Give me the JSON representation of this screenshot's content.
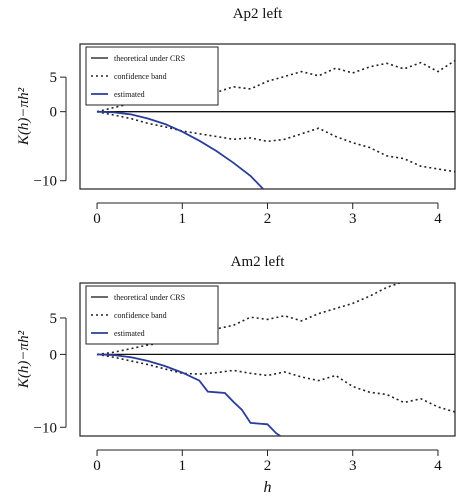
{
  "chart_data": [
    {
      "type": "line",
      "title": "Ap2 left",
      "ylabel": "K(h)−πh²",
      "xlabel": "",
      "xlim": [
        -0.2,
        4.2
      ],
      "ylim": [
        -11.2,
        9.8
      ],
      "xticks": [
        0,
        1,
        2,
        3,
        4
      ],
      "yticks": [
        -10,
        0,
        5
      ],
      "legend_position": "top-left",
      "legend": [
        "theoretical under CRS",
        "confidence band",
        "estimated"
      ],
      "series": [
        {
          "name": "theoretical under CRS",
          "style": "solid",
          "color": "#111111",
          "x": [
            0,
            4.2
          ],
          "y": [
            0,
            0
          ]
        },
        {
          "name": "confidence band",
          "style": "dotted",
          "color": "#222222",
          "x": [
            0,
            0.2,
            0.4,
            0.6,
            0.8,
            1.0,
            1.2,
            1.4,
            1.6,
            1.8,
            2.0,
            2.2,
            2.4,
            2.6,
            2.8,
            3.0,
            3.2,
            3.4,
            3.6,
            3.8,
            4.0,
            4.2
          ],
          "y": [
            0,
            0.6,
            1.2,
            1.8,
            2.4,
            2.9,
            3.1,
            2.8,
            3.6,
            3.3,
            4.4,
            5.1,
            5.8,
            5.2,
            6.3,
            5.6,
            6.5,
            7.0,
            6.2,
            7.1,
            5.8,
            7.4
          ]
        },
        {
          "name": "confidence band",
          "style": "dotted",
          "color": "#222222",
          "x": [
            0,
            0.2,
            0.4,
            0.6,
            0.8,
            1.0,
            1.2,
            1.4,
            1.6,
            1.8,
            2.0,
            2.2,
            2.4,
            2.6,
            2.8,
            3.0,
            3.2,
            3.4,
            3.6,
            3.8,
            4.0,
            4.2
          ],
          "y": [
            0,
            -0.5,
            -1.0,
            -1.7,
            -2.2,
            -2.8,
            -3.2,
            -3.6,
            -4.0,
            -3.8,
            -4.3,
            -4.0,
            -3.2,
            -2.4,
            -3.6,
            -4.5,
            -5.2,
            -6.4,
            -6.8,
            -7.9,
            -8.3,
            -8.7
          ]
        },
        {
          "name": "estimated",
          "style": "solid",
          "color": "#2b3d9c",
          "x": [
            0,
            0.2,
            0.4,
            0.6,
            0.8,
            1.0,
            1.2,
            1.4,
            1.6,
            1.8,
            1.95
          ],
          "y": [
            0,
            -0.1,
            -0.4,
            -1.0,
            -1.8,
            -2.9,
            -4.2,
            -5.7,
            -7.4,
            -9.3,
            -11.2
          ]
        }
      ]
    },
    {
      "type": "line",
      "title": "Am2 left",
      "ylabel": "K(h)−πh²",
      "xlabel": "h",
      "xlim": [
        -0.2,
        4.2
      ],
      "ylim": [
        -11.2,
        9.8
      ],
      "xticks": [
        0,
        1,
        2,
        3,
        4
      ],
      "yticks": [
        -10,
        0,
        5
      ],
      "legend_position": "top-left",
      "legend": [
        "theoretical under CRS",
        "confidence band",
        "estimated"
      ],
      "series": [
        {
          "name": "theoretical under CRS",
          "style": "solid",
          "color": "#111111",
          "x": [
            0,
            4.2
          ],
          "y": [
            0,
            0
          ]
        },
        {
          "name": "confidence band",
          "style": "dotted",
          "color": "#222222",
          "x": [
            0,
            0.2,
            0.4,
            0.6,
            0.8,
            1.0,
            1.2,
            1.4,
            1.6,
            1.8,
            2.0,
            2.2,
            2.4,
            2.6,
            2.8,
            3.0,
            3.2,
            3.4,
            3.6
          ],
          "y": [
            0,
            0.3,
            0.8,
            1.3,
            1.6,
            2.2,
            2.6,
            3.5,
            4.0,
            5.1,
            4.8,
            5.3,
            4.6,
            5.6,
            6.3,
            7.0,
            8.0,
            9.2,
            10.0
          ]
        },
        {
          "name": "confidence band",
          "style": "dotted",
          "color": "#222222",
          "x": [
            0,
            0.2,
            0.4,
            0.6,
            0.8,
            1.0,
            1.2,
            1.4,
            1.6,
            1.8,
            2.0,
            2.2,
            2.4,
            2.6,
            2.8,
            3.0,
            3.2,
            3.4,
            3.6,
            3.8,
            4.0,
            4.2
          ],
          "y": [
            0,
            -0.4,
            -0.9,
            -1.4,
            -2.0,
            -2.6,
            -2.7,
            -2.5,
            -2.2,
            -2.6,
            -2.9,
            -2.4,
            -3.1,
            -3.6,
            -2.9,
            -4.4,
            -5.2,
            -5.5,
            -6.6,
            -6.1,
            -7.2,
            -7.9
          ]
        },
        {
          "name": "estimated",
          "style": "solid",
          "color": "#2b3d9c",
          "x": [
            0,
            0.2,
            0.4,
            0.6,
            0.8,
            1.0,
            1.2,
            1.3,
            1.4,
            1.5,
            1.6,
            1.7,
            1.8,
            1.9,
            2.0,
            2.1,
            2.15
          ],
          "y": [
            0,
            -0.1,
            -0.4,
            -0.9,
            -1.6,
            -2.5,
            -3.6,
            -5.1,
            -5.2,
            -5.3,
            -6.5,
            -7.6,
            -9.4,
            -9.5,
            -9.6,
            -10.8,
            -11.2
          ]
        }
      ]
    }
  ]
}
